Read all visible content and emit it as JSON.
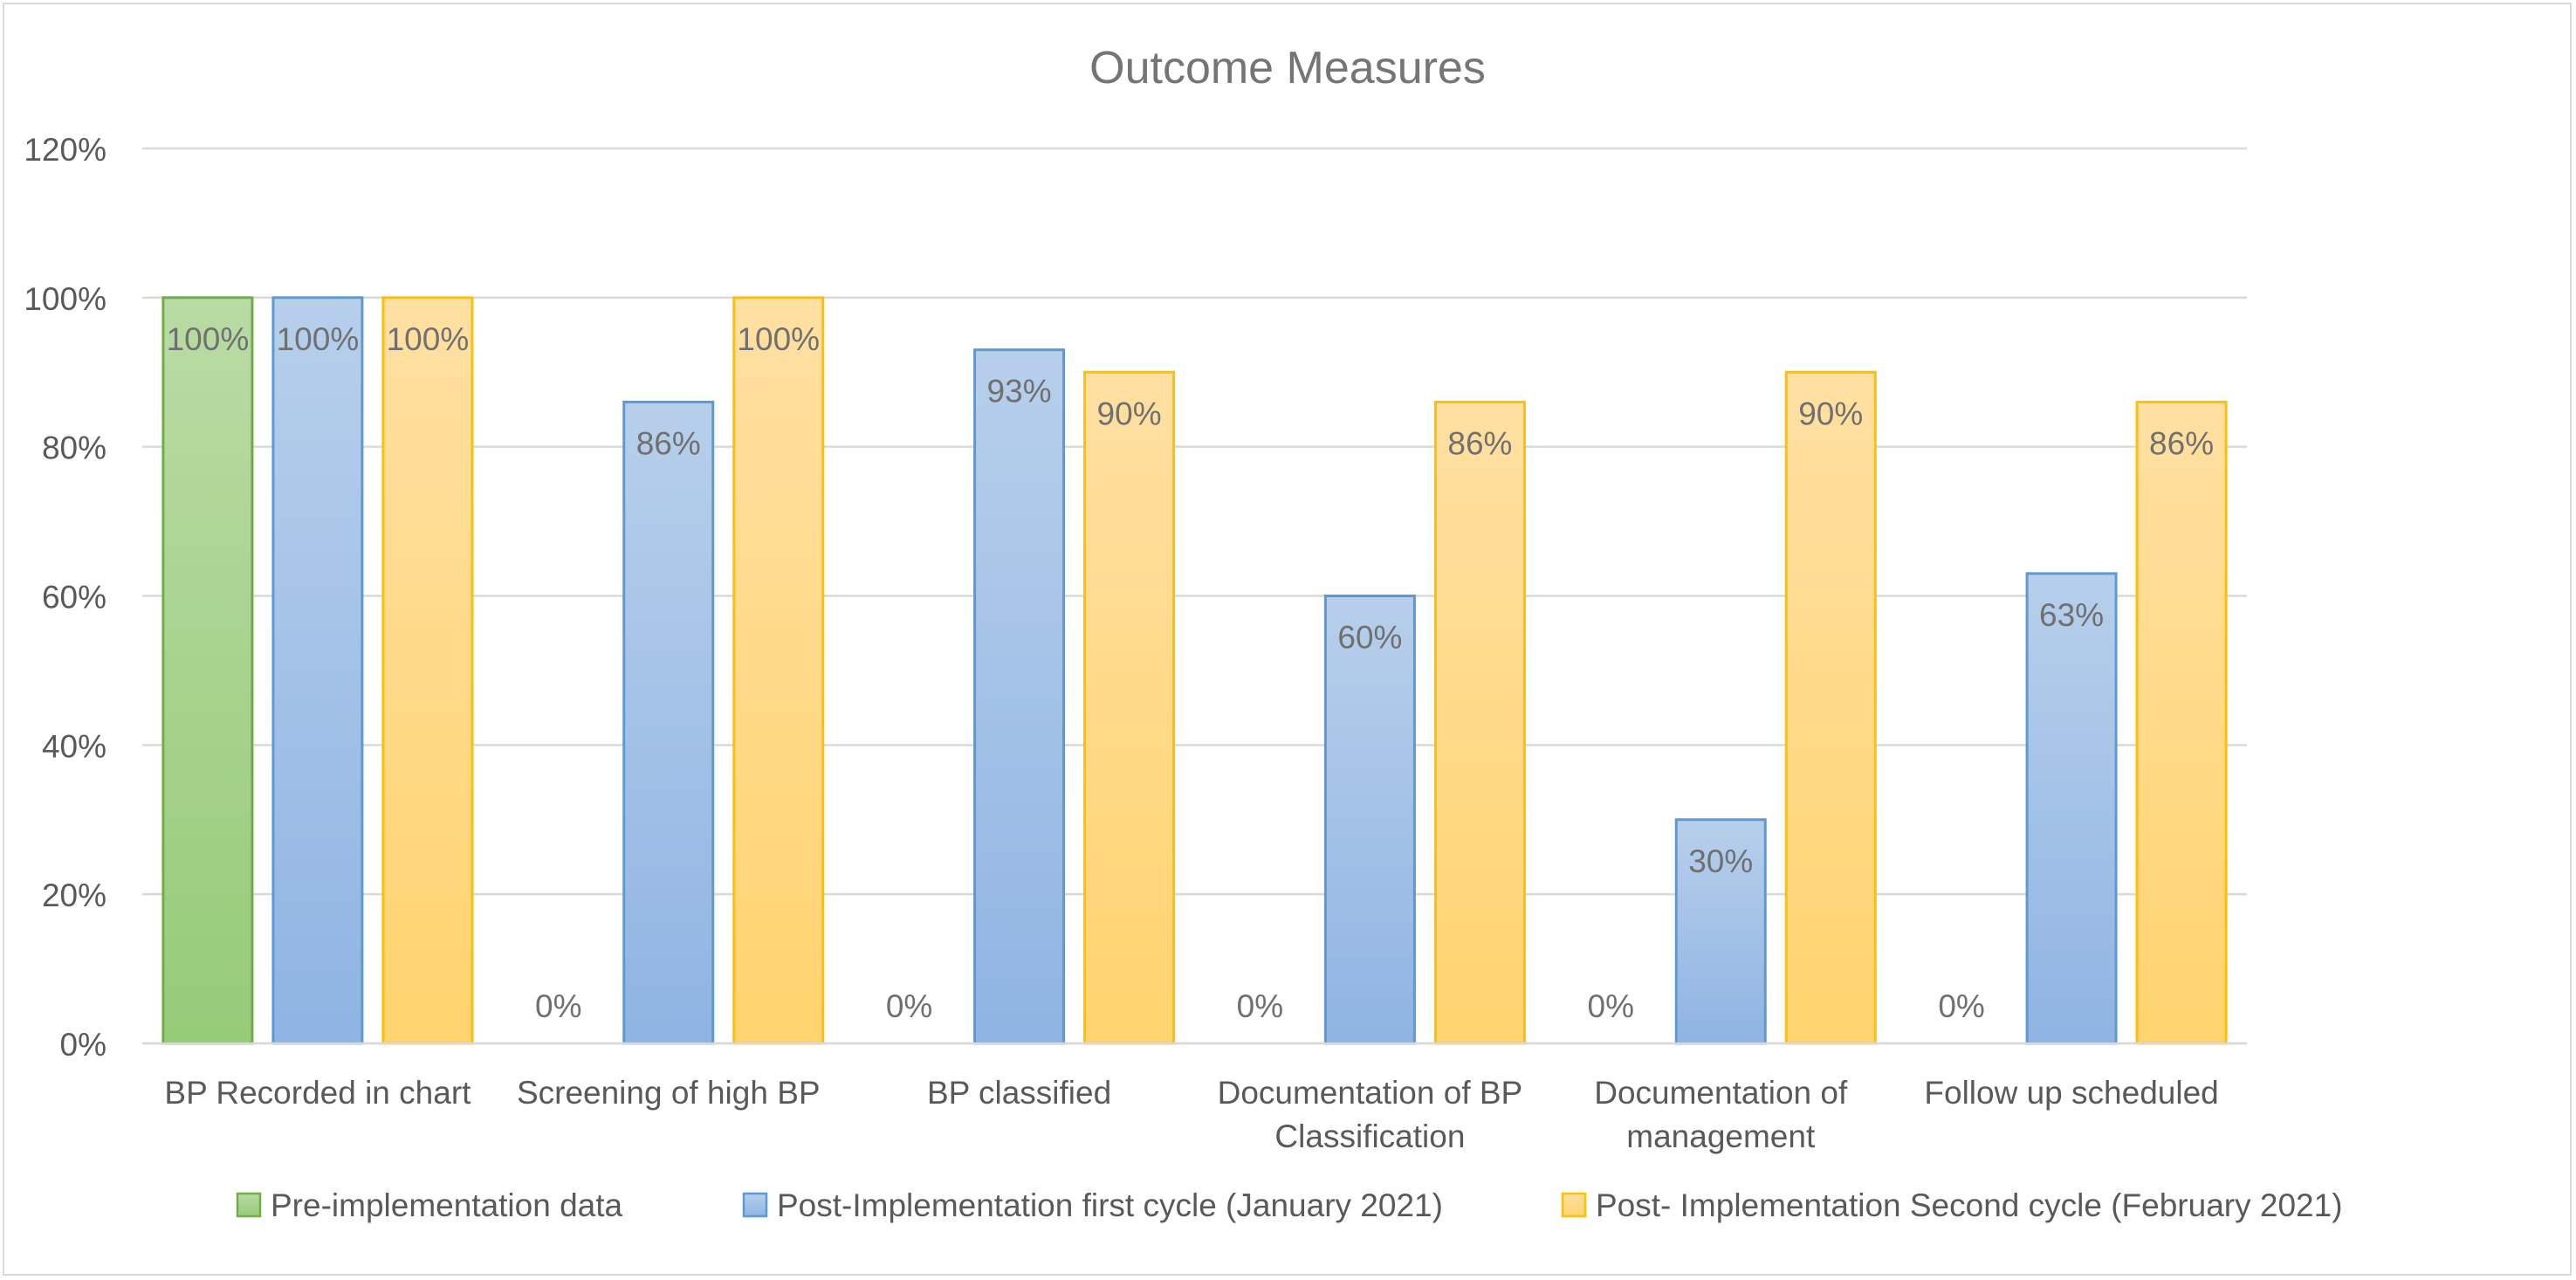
{
  "chart_data": {
    "type": "bar",
    "title": "Outcome Measures",
    "xlabel": "",
    "ylabel": "",
    "ylim": [
      0,
      1.2
    ],
    "yticks": [
      "0%",
      "20%",
      "40%",
      "60%",
      "80%",
      "100%",
      "120%"
    ],
    "ytick_values": [
      0,
      0.2,
      0.4,
      0.6,
      0.8,
      1.0,
      1.2
    ],
    "grid": true,
    "legend_position": "bottom",
    "categories": [
      [
        "BP Recorded in chart"
      ],
      [
        "Screening of high BP"
      ],
      [
        "BP classified"
      ],
      [
        "Documentation of BP",
        "Classification"
      ],
      [
        "Documentation of",
        "management"
      ],
      [
        "Follow up scheduled"
      ]
    ],
    "series": [
      {
        "name": "Pre-implementation data",
        "color": "#70ad47",
        "values": [
          1.0,
          0,
          0,
          0,
          0,
          0
        ],
        "labels": [
          "100%",
          "0%",
          "0%",
          "0%",
          "0%",
          "0%"
        ]
      },
      {
        "name": "Post-Implementation first cycle (January 2021)",
        "color": "#5b9bd5",
        "values": [
          1.0,
          0.86,
          0.93,
          0.6,
          0.3,
          0.63
        ],
        "labels": [
          "100%",
          "86%",
          "93%",
          "60%",
          "30%",
          "63%"
        ]
      },
      {
        "name": "Post- Implementation Second cycle (February 2021)",
        "color": "#ffc000",
        "values": [
          1.0,
          1.0,
          0.9,
          0.86,
          0.9,
          0.86
        ],
        "labels": [
          "100%",
          "100%",
          "90%",
          "86%",
          "90%",
          "86%"
        ]
      }
    ]
  }
}
